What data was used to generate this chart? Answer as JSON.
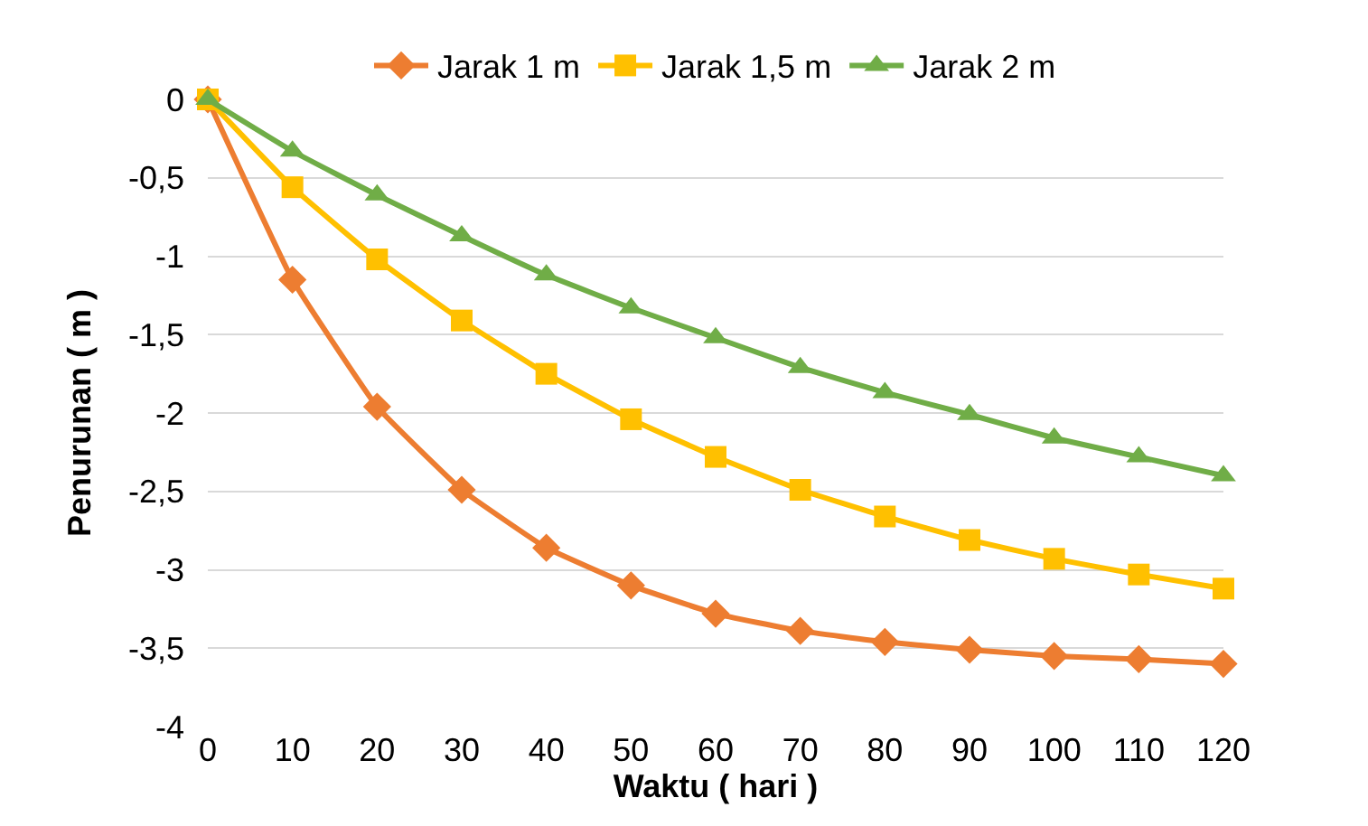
{
  "chart_data": {
    "type": "line",
    "xlabel": "Waktu ( hari )",
    "ylabel": "Penurunan ( m )",
    "x": [
      0,
      10,
      20,
      30,
      40,
      50,
      60,
      70,
      80,
      90,
      100,
      110,
      120
    ],
    "series": [
      {
        "name": "Jarak 1 m",
        "color": "#ed7d31",
        "marker": "diamond",
        "values": [
          0,
          -1.15,
          -1.96,
          -2.49,
          -2.86,
          -3.1,
          -3.28,
          -3.39,
          -3.46,
          -3.51,
          -3.55,
          -3.57,
          -3.6
        ]
      },
      {
        "name": "Jarak 1,5 m",
        "color": "#ffc000",
        "marker": "square",
        "values": [
          0,
          -0.56,
          -1.02,
          -1.41,
          -1.75,
          -2.04,
          -2.28,
          -2.49,
          -2.66,
          -2.81,
          -2.93,
          -3.03,
          -3.12
        ]
      },
      {
        "name": "Jarak 2 m",
        "color": "#70ad47",
        "marker": "triangle",
        "values": [
          0,
          -0.33,
          -0.61,
          -0.87,
          -1.12,
          -1.33,
          -1.52,
          -1.71,
          -1.87,
          -2.01,
          -2.16,
          -2.28,
          -2.4
        ]
      }
    ],
    "xlim": [
      0,
      120
    ],
    "xticks": [
      0,
      10,
      20,
      30,
      40,
      50,
      60,
      70,
      80,
      90,
      100,
      110,
      120
    ],
    "ylim": [
      -4,
      0
    ],
    "yticks": [
      {
        "value": -4,
        "label": "-4"
      },
      {
        "value": -3.5,
        "label": "-3,5"
      },
      {
        "value": -3,
        "label": "-3"
      },
      {
        "value": -2.5,
        "label": "-2,5"
      },
      {
        "value": -2,
        "label": "-2"
      },
      {
        "value": -1.5,
        "label": "-1,5"
      },
      {
        "value": -1,
        "label": "-1"
      },
      {
        "value": -0.5,
        "label": "-0,5"
      },
      {
        "value": 0,
        "label": "0"
      }
    ],
    "grid": "y",
    "legend": "top",
    "line_style": "solid"
  }
}
